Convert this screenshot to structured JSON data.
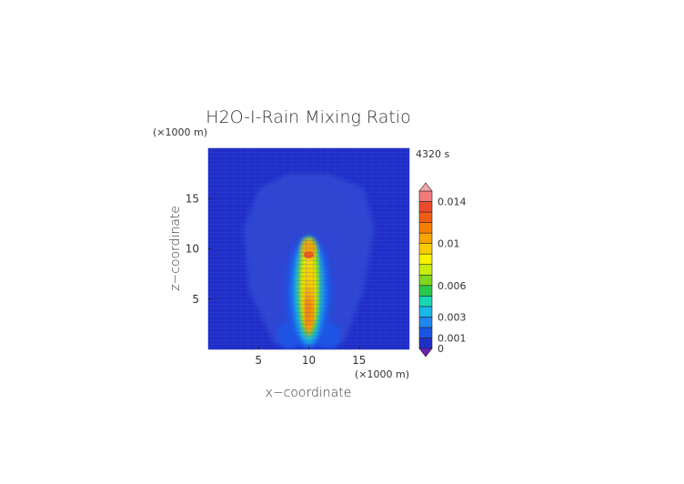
{
  "chart_data": {
    "type": "heatmap",
    "title": "H2O-I-Rain Mixing Ratio",
    "xlabel": "x−coordinate",
    "ylabel": "z−coordinate",
    "x_unit": "(×1000 m)",
    "y_unit": "(×1000 m)",
    "time_label": "4320 s",
    "xlim": [
      0,
      20
    ],
    "ylim": [
      0,
      20
    ],
    "x_ticks": [
      5,
      10,
      15
    ],
    "y_ticks": [
      5,
      10,
      15
    ],
    "x_tick_labels": [
      "5",
      "10",
      "15"
    ],
    "y_tick_labels": [
      "5",
      "10",
      "15"
    ],
    "colorbar": {
      "range": [
        0,
        0.015
      ],
      "levels": [
        0,
        0.001,
        0.002,
        0.003,
        0.004,
        0.005,
        0.006,
        0.007,
        0.008,
        0.009,
        0.01,
        0.011,
        0.012,
        0.013,
        0.014,
        0.015
      ],
      "colors": [
        "#1f2ec8",
        "#1a55e6",
        "#1e88f0",
        "#18b8e8",
        "#19d6b4",
        "#29c84a",
        "#7fd61e",
        "#c8ee10",
        "#f7f300",
        "#f8cc00",
        "#f7a300",
        "#f77d00",
        "#f25d14",
        "#ee4a2a",
        "#f27a7a"
      ],
      "tick_values": [
        0,
        0.001,
        0.003,
        0.006,
        0.01,
        0.014
      ],
      "tick_labels": [
        "0",
        "0.001",
        "0.003",
        "0.006",
        "0.01",
        "0.014"
      ],
      "under_color": "#6a1fb0",
      "over_color": "#f4a4a4"
    },
    "field_description_values": {
      "background_level": 0.0003,
      "column_center_x": 10,
      "column_top_z": 11,
      "max_value": 0.0135
    }
  }
}
